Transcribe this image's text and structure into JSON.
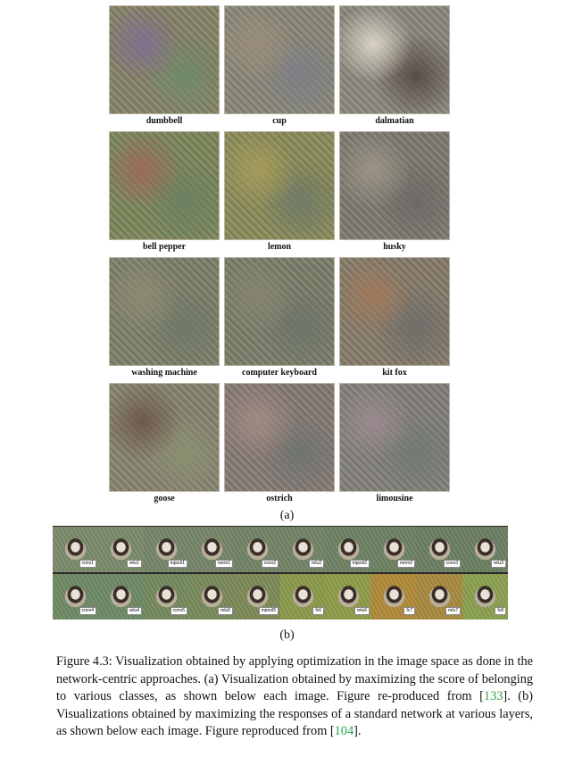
{
  "grid": [
    {
      "label": "dumbbell",
      "c1": "#8a8565",
      "c2": "#7e6f8f",
      "c3": "#6f8a6a"
    },
    {
      "label": "cup",
      "c1": "#8e8a78",
      "c2": "#9a8e7a",
      "c3": "#7d7f86"
    },
    {
      "label": "dalmatian",
      "c1": "#8f8b7e",
      "c2": "#d8d2c4",
      "c3": "#5a4d45"
    },
    {
      "label": "bell pepper",
      "c1": "#7f8a57",
      "c2": "#9a6a5a",
      "c3": "#6b8060"
    },
    {
      "label": "lemon",
      "c1": "#8f8f55",
      "c2": "#a59a5a",
      "c3": "#707a66"
    },
    {
      "label": "husky",
      "c1": "#807b6f",
      "c2": "#9b9386",
      "c3": "#6c6a66"
    },
    {
      "label": "washing machine",
      "c1": "#818269",
      "c2": "#8c8a72",
      "c3": "#6f7866"
    },
    {
      "label": "computer keyboard",
      "c1": "#7e8068",
      "c2": "#858571",
      "c3": "#6d7468"
    },
    {
      "label": "kit fox",
      "c1": "#8a7d68",
      "c2": "#a07a5a",
      "c3": "#6f6e6a"
    },
    {
      "label": "goose",
      "c1": "#8b8670",
      "c2": "#6e5a4a",
      "c3": "#8a9070"
    },
    {
      "label": "ostrich",
      "c1": "#8b7c74",
      "c2": "#a08a82",
      "c3": "#6e7470"
    },
    {
      "label": "limousine",
      "c1": "#86827a",
      "c2": "#9a8a8e",
      "c3": "#707a74"
    }
  ],
  "subfig_a": "(a)",
  "subfig_b": "(b)",
  "strip": {
    "row1": [
      {
        "tag": "conv1",
        "c": "#7a8a6a"
      },
      {
        "tag": "relu1",
        "c": "#7a8a6a"
      },
      {
        "tag": "mpool1",
        "c": "#768668"
      },
      {
        "tag": "norm1",
        "c": "#768668"
      },
      {
        "tag": "conv2",
        "c": "#728466"
      },
      {
        "tag": "relu2",
        "c": "#728466"
      },
      {
        "tag": "mpool2",
        "c": "#6f8264"
      },
      {
        "tag": "norm2",
        "c": "#6f8264"
      },
      {
        "tag": "conv3",
        "c": "#6c8062"
      },
      {
        "tag": "relu3",
        "c": "#6c8062"
      }
    ],
    "row2": [
      {
        "tag": "conv4",
        "c": "#6e8a66"
      },
      {
        "tag": "relu4",
        "c": "#6e8a66"
      },
      {
        "tag": "conv5",
        "c": "#758a5e"
      },
      {
        "tag": "relu5",
        "c": "#7a8a5a"
      },
      {
        "tag": "mpool5",
        "c": "#7e8a58"
      },
      {
        "tag": "fc6",
        "c": "#8a9a4a"
      },
      {
        "tag": "relu6",
        "c": "#8f9c48"
      },
      {
        "tag": "fc7",
        "c": "#b08a3a"
      },
      {
        "tag": "relu7",
        "c": "#a88a40"
      },
      {
        "tag": "fc8",
        "c": "#8aa050"
      }
    ]
  },
  "caption": {
    "part1": "Figure 4.3: Visualization obtained by applying optimization in the image space as done in the network-centric approaches. (a) Visualization obtained by maximizing the score of belonging to various classes, as shown below each image. Figure re-produced from [",
    "ref1": "133",
    "part2": "]. (b) Visualizations obtained by maximizing the responses of a standard network at various layers, as shown below each image. Figure reproduced from [",
    "ref2": "104",
    "part3": "]."
  }
}
